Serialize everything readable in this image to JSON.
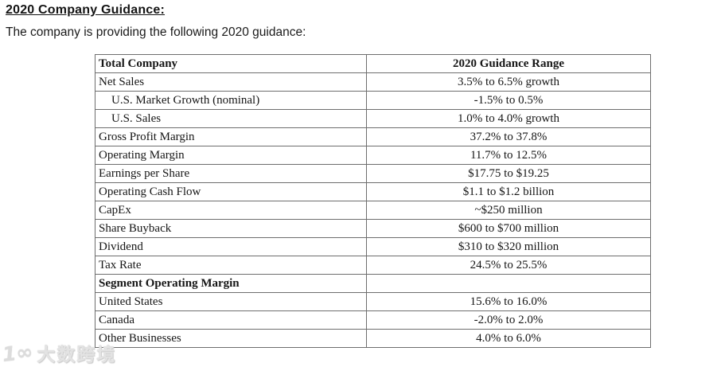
{
  "page": {
    "title": "2020 Company Guidance:",
    "intro": "The company is providing the following 2020 guidance:"
  },
  "table": {
    "headers": [
      "Total Company",
      "2020 Guidance Range"
    ],
    "rows": [
      {
        "label": "Net Sales",
        "value": "3.5% to 6.5% growth",
        "indent": false,
        "bold": false
      },
      {
        "label": "U.S. Market Growth (nominal)",
        "value": "-1.5% to 0.5%",
        "indent": true,
        "bold": false
      },
      {
        "label": "U.S. Sales",
        "value": "1.0% to 4.0% growth",
        "indent": true,
        "bold": false
      },
      {
        "label": "Gross Profit Margin",
        "value": "37.2% to 37.8%",
        "indent": false,
        "bold": false
      },
      {
        "label": "Operating Margin",
        "value": "11.7% to 12.5%",
        "indent": false,
        "bold": false
      },
      {
        "label": "Earnings per Share",
        "value": "$17.75 to $19.25",
        "indent": false,
        "bold": false
      },
      {
        "label": "Operating Cash Flow",
        "value": "$1.1 to $1.2 billion",
        "indent": false,
        "bold": false
      },
      {
        "label": "CapEx",
        "value": "~$250 million",
        "indent": false,
        "bold": false
      },
      {
        "label": "Share Buyback",
        "value": "$600 to $700 million",
        "indent": false,
        "bold": false
      },
      {
        "label": "Dividend",
        "value": "$310 to $320 million",
        "indent": false,
        "bold": false
      },
      {
        "label": "Tax Rate",
        "value": "24.5% to 25.5%",
        "indent": false,
        "bold": false
      },
      {
        "label": "Segment Operating Margin",
        "value": "",
        "indent": false,
        "bold": true
      },
      {
        "label": "United States",
        "value": "15.6% to 16.0%",
        "indent": false,
        "bold": false
      },
      {
        "label": "Canada",
        "value": "-2.0% to 2.0%",
        "indent": false,
        "bold": false
      },
      {
        "label": "Other Businesses",
        "value": "4.0% to 6.0%",
        "indent": false,
        "bold": false
      }
    ]
  },
  "watermark": {
    "logo": "1∞",
    "text": "大数跨境",
    "color": "#dcdcdc"
  }
}
